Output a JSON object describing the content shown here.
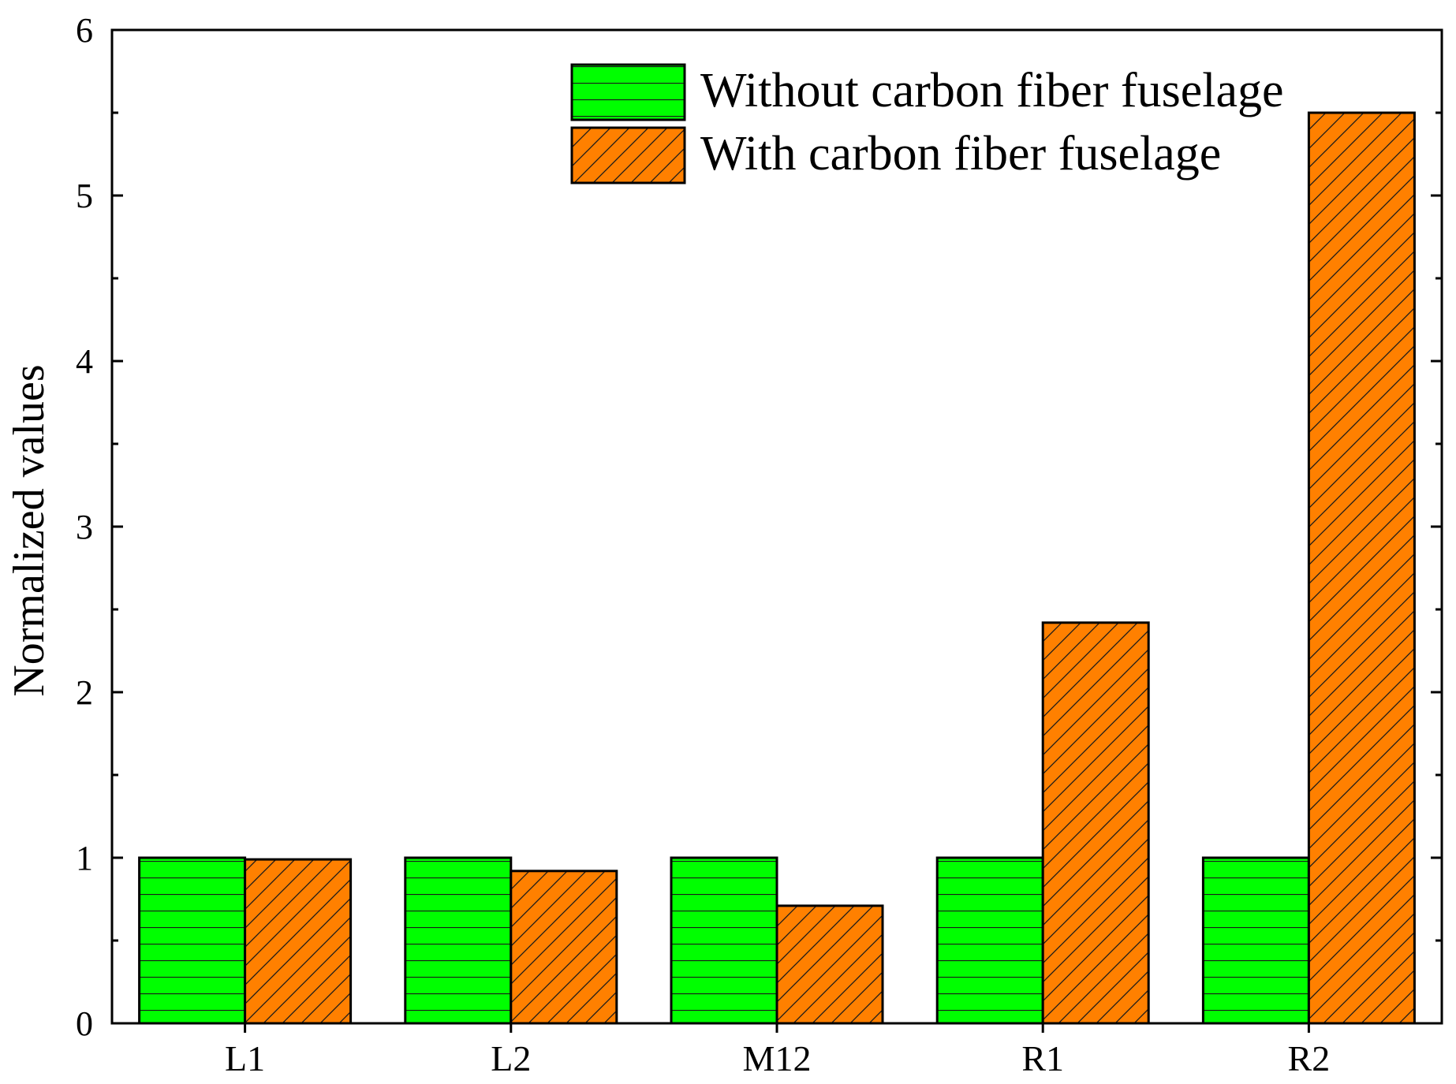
{
  "chart_data": {
    "type": "bar",
    "categories": [
      "L1",
      "L2",
      "M12",
      "R1",
      "R2"
    ],
    "series": [
      {
        "name": "Without carbon fiber fuselage",
        "values": [
          1.0,
          1.0,
          1.0,
          1.0,
          1.0
        ],
        "color": "#00ff00",
        "pattern": "horizontal-lines"
      },
      {
        "name": "With carbon fiber fuselage",
        "values": [
          0.99,
          0.92,
          0.71,
          2.42,
          5.5
        ],
        "color": "#ff8000",
        "pattern": "diagonal-lines"
      }
    ],
    "xlabel": "",
    "ylabel": "Normalized values",
    "ylim": [
      0,
      6
    ],
    "yticks": [
      "0",
      "1",
      "2",
      "3",
      "4",
      "5",
      "6"
    ],
    "minor_tick_step": 0.5,
    "grid": false,
    "legend_position": "top-right"
  }
}
